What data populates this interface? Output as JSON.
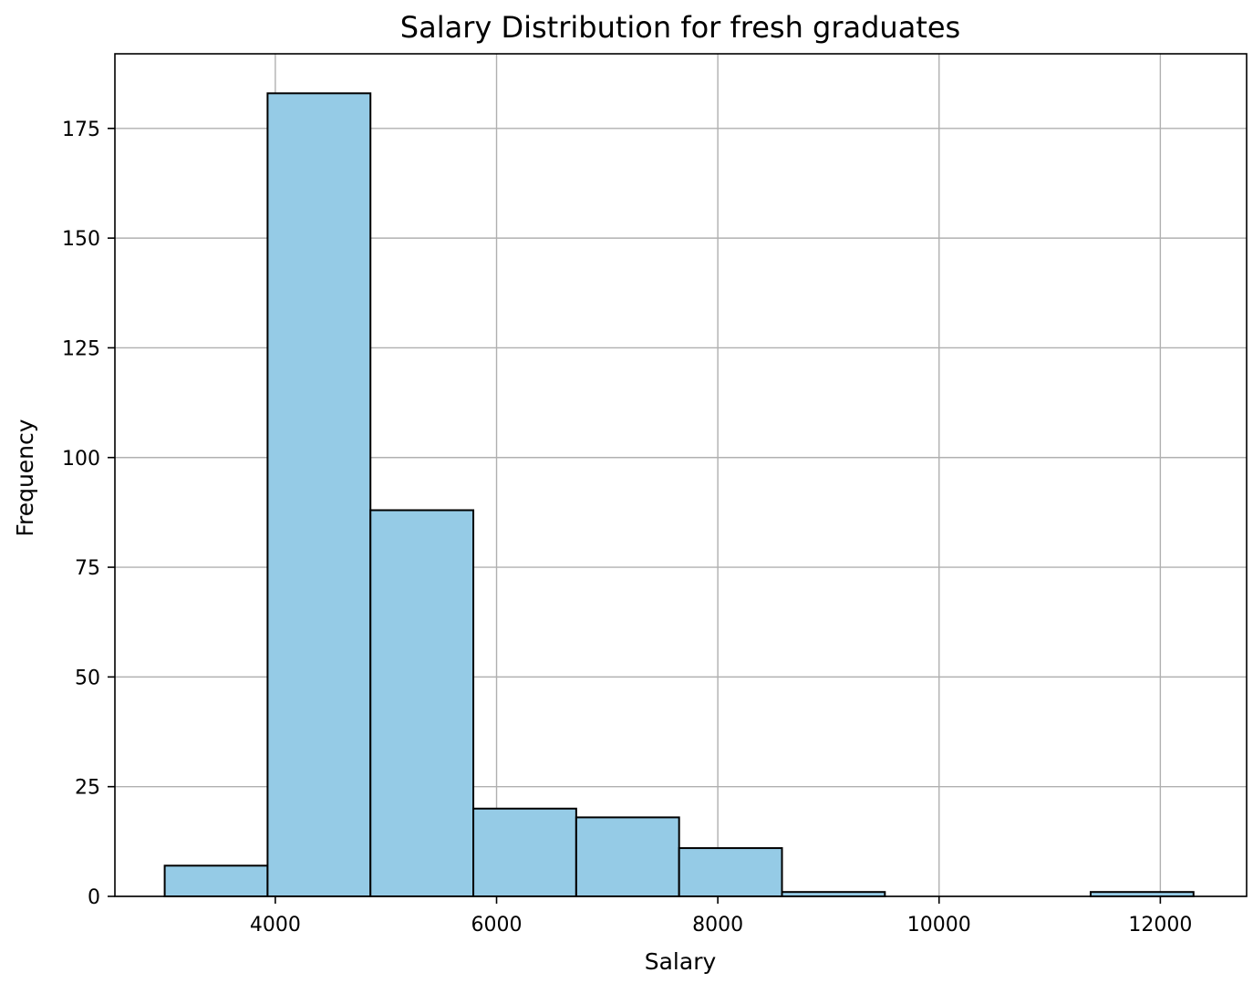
{
  "chart_data": {
    "type": "histogram",
    "title": "Salary Distribution for fresh graduates",
    "xlabel": "Salary",
    "ylabel": "Frequency",
    "xlim": [
      2550,
      12780
    ],
    "ylim": [
      0,
      192
    ],
    "x_ticks": [
      4000,
      6000,
      8000,
      10000,
      12000
    ],
    "y_ticks": [
      0,
      25,
      50,
      75,
      100,
      125,
      150,
      175
    ],
    "grid": true,
    "bar_color": "#95CBE6",
    "edge_color": "#000000",
    "bins": [
      {
        "start": 3000,
        "end": 3930,
        "count": 7
      },
      {
        "start": 3930,
        "end": 4860,
        "count": 183
      },
      {
        "start": 4860,
        "end": 5790,
        "count": 88
      },
      {
        "start": 5790,
        "end": 6720,
        "count": 20
      },
      {
        "start": 6720,
        "end": 7650,
        "count": 18
      },
      {
        "start": 7650,
        "end": 8580,
        "count": 11
      },
      {
        "start": 8580,
        "end": 9510,
        "count": 1
      },
      {
        "start": 9510,
        "end": 10440,
        "count": 0
      },
      {
        "start": 10440,
        "end": 11370,
        "count": 0
      },
      {
        "start": 11370,
        "end": 12300,
        "count": 1
      }
    ]
  }
}
